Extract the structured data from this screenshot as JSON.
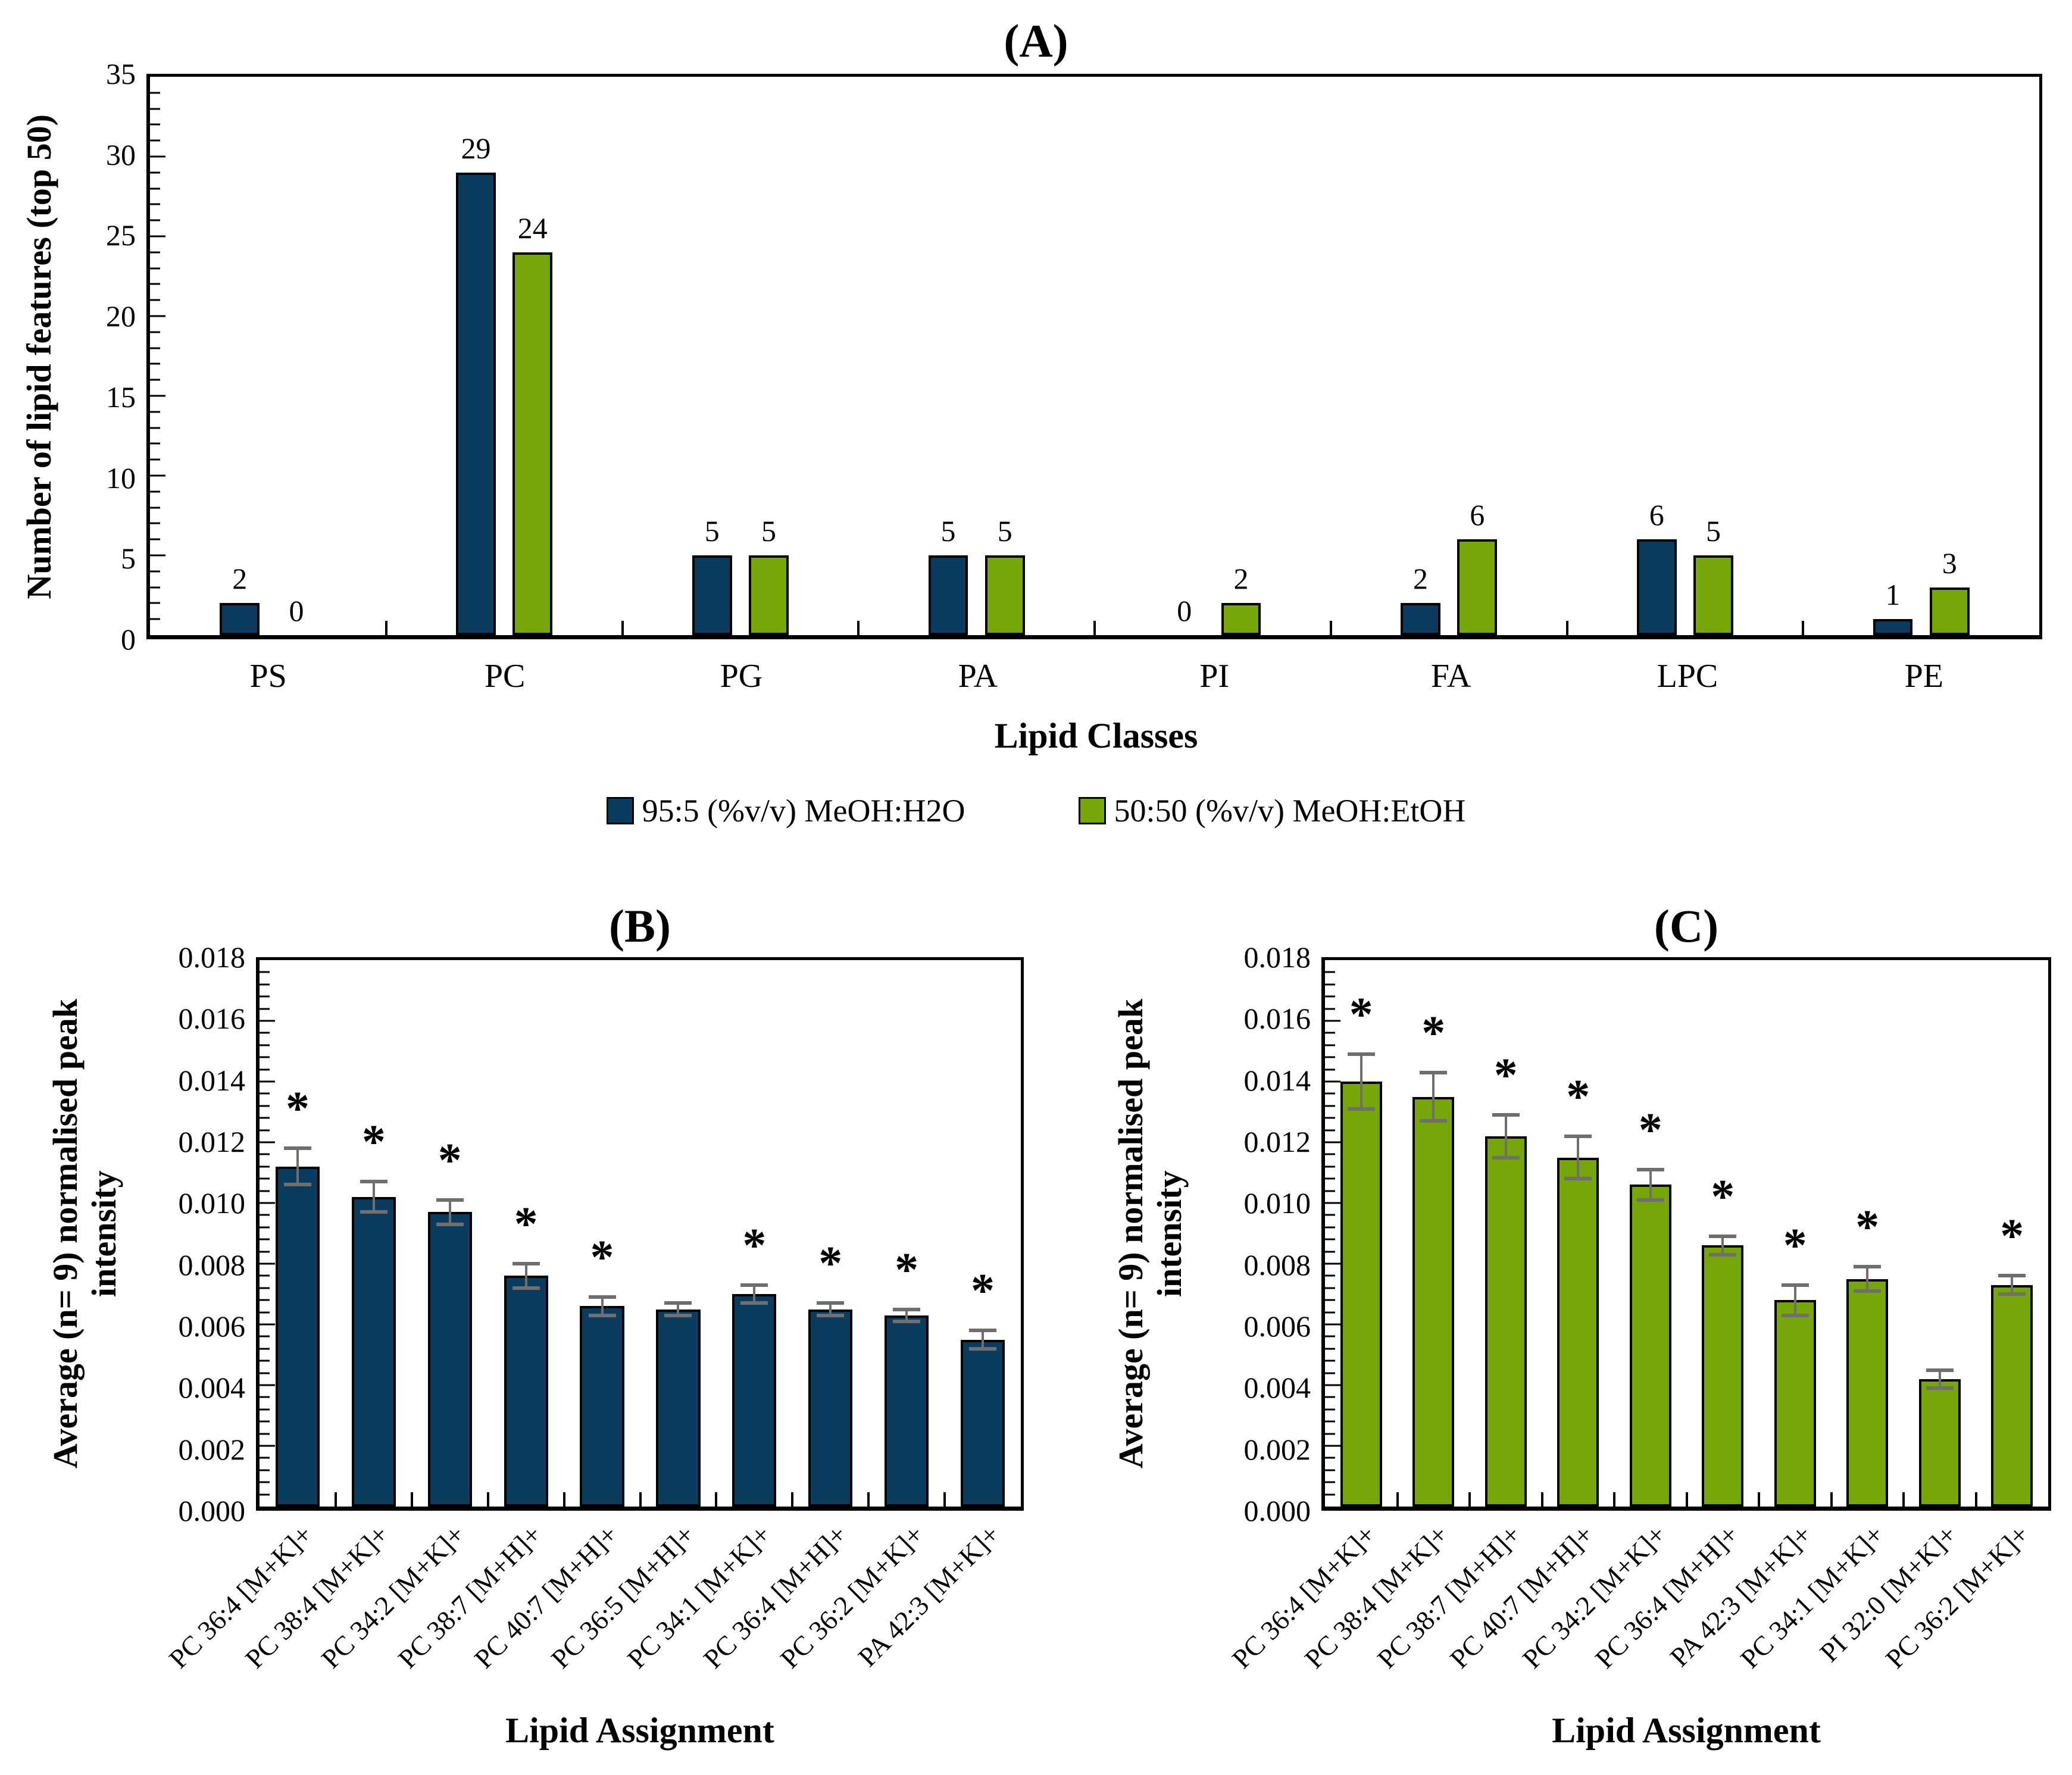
{
  "significance_marker": "*",
  "colors": {
    "navy": "#0b3c5d",
    "green": "#76a607",
    "error_bar": "#6f6f6f",
    "axis": "#000000"
  },
  "legend": {
    "series1_label": "95:5 (%v/v) MeOH:H2O",
    "series2_label": "50:50 (%v/v) MeOH:EtOH"
  },
  "chart_data": [
    {
      "id": "A",
      "type": "bar",
      "title": "(A)",
      "xlabel": "Lipid Classes",
      "ylabel": "Number of lipid features (top 50)",
      "ylim": [
        0,
        35
      ],
      "yticks": [
        "0",
        "5",
        "10",
        "15",
        "20",
        "25",
        "30",
        "35"
      ],
      "minor_step": 1,
      "major_step": 5,
      "grid": false,
      "legend_position": "bottom",
      "data_labels": true,
      "categories": [
        "PS",
        "PC",
        "PG",
        "PA",
        "PI",
        "FA",
        "LPC",
        "PE"
      ],
      "series": [
        {
          "name": "95:5 (%v/v) MeOH:H2O",
          "color": "#0b3c5d",
          "values": [
            2,
            29,
            5,
            5,
            0,
            2,
            6,
            1
          ]
        },
        {
          "name": "50:50 (%v/v) MeOH:EtOH",
          "color": "#76a607",
          "values": [
            0,
            24,
            5,
            5,
            2,
            6,
            5,
            3
          ]
        }
      ]
    },
    {
      "id": "B",
      "type": "bar",
      "title": "(B)",
      "xlabel": "Lipid Assignment",
      "ylabel_lines": [
        "Average (n= 9) normalised peak",
        "intensity"
      ],
      "ylim": [
        0,
        0.018
      ],
      "yticks": [
        "0.000",
        "0.002",
        "0.004",
        "0.006",
        "0.008",
        "0.010",
        "0.012",
        "0.014",
        "0.016",
        "0.018"
      ],
      "minor_step": 0.0004,
      "major_step": 0.002,
      "grid": false,
      "categories": [
        "PC 36:4 [M+K]+",
        "PC 38:4 [M+K]+",
        "PC 34:2 [M+K]+",
        "PC 38:7 [M+H]+",
        "PC 40:7 [M+H]+",
        "PC 36:5 [M+H]+",
        "PC 34:1 [M+K]+",
        "PC 36:4 [M+H]+",
        "PC 36:2 [M+K]+",
        "PA 42:3 [M+K]+"
      ],
      "series": [
        {
          "name": "95:5 (%v/v) MeOH:H2O",
          "color": "#0b3c5d",
          "values": [
            0.0112,
            0.0102,
            0.0097,
            0.0076,
            0.0066,
            0.0065,
            0.007,
            0.0065,
            0.0063,
            0.0055
          ],
          "errors": [
            0.0006,
            0.0005,
            0.0004,
            0.0004,
            0.0003,
            0.0002,
            0.0003,
            0.0002,
            0.0002,
            0.0003
          ],
          "significant": [
            true,
            true,
            true,
            true,
            true,
            false,
            true,
            true,
            true,
            true
          ]
        }
      ]
    },
    {
      "id": "C",
      "type": "bar",
      "title": "(C)",
      "xlabel": "Lipid Assignment",
      "ylabel_lines": [
        "Average (n= 9) normalised peak",
        "intensity"
      ],
      "ylim": [
        0,
        0.018
      ],
      "yticks": [
        "0.000",
        "0.002",
        "0.004",
        "0.006",
        "0.008",
        "0.010",
        "0.012",
        "0.014",
        "0.016",
        "0.018"
      ],
      "minor_step": 0.0004,
      "major_step": 0.002,
      "grid": false,
      "categories": [
        "PC 36:4 [M+K]+",
        "PC 38:4 [M+K]+",
        "PC 38:7 [M+H]+",
        "PC 40:7 [M+H]+",
        "PC 34:2 [M+K]+",
        "PC 36:4 [M+H]+",
        "PA 42:3 [M+K]+",
        "PC 34:1 [M+K]+",
        "PI 32:0 [M+K]+",
        "PC 36:2 [M+K]+"
      ],
      "series": [
        {
          "name": "50:50 (%v/v) MeOH:EtOH",
          "color": "#76a607",
          "values": [
            0.014,
            0.0135,
            0.0122,
            0.0115,
            0.0106,
            0.0086,
            0.0068,
            0.0075,
            0.0042,
            0.0073
          ],
          "errors": [
            0.0009,
            0.0008,
            0.0007,
            0.0007,
            0.0005,
            0.0003,
            0.0005,
            0.0004,
            0.0003,
            0.0003
          ],
          "significant": [
            true,
            true,
            true,
            true,
            true,
            true,
            true,
            true,
            false,
            true
          ]
        }
      ]
    }
  ]
}
